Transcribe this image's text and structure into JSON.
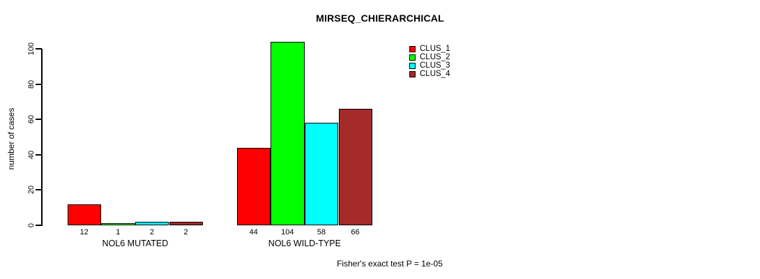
{
  "chart_data": {
    "type": "bar",
    "title": "MIRSEQ_CHIERARCHICAL",
    "ylabel": "number of cases",
    "ylim": [
      0,
      100
    ],
    "yticks": [
      0,
      20,
      40,
      60,
      80,
      100
    ],
    "grid": false,
    "legend_position": "top-right",
    "categories": [
      "NOL6 MUTATED",
      "NOL6 WILD-TYPE"
    ],
    "series": [
      {
        "name": "CLUS_1",
        "color": "#FF0000",
        "values": [
          12,
          44
        ]
      },
      {
        "name": "CLUS_2",
        "color": "#00FF00",
        "values": [
          1,
          104
        ]
      },
      {
        "name": "CLUS_3",
        "color": "#00FFFF",
        "values": [
          2,
          58
        ]
      },
      {
        "name": "CLUS_4",
        "color": "#A52A2A",
        "values": [
          2,
          66
        ]
      }
    ],
    "groups": [
      {
        "label": "NOL6 MUTATED",
        "values": [
          12,
          1,
          2,
          2
        ]
      },
      {
        "label": "NOL6 WILD-TYPE",
        "values": [
          44,
          104,
          58,
          66
        ]
      }
    ],
    "bar_value_labels": [
      [
        12,
        1,
        2,
        2
      ],
      [
        44,
        104,
        58,
        66
      ]
    ],
    "annotation": "Fisher's exact test P = 1e-05"
  }
}
